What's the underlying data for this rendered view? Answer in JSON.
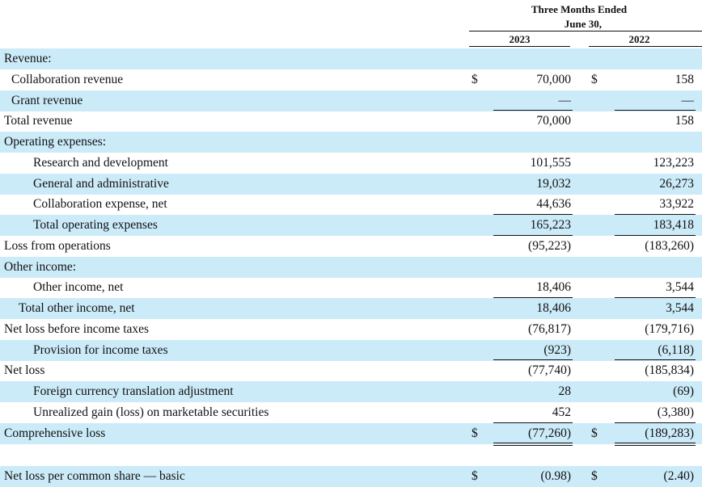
{
  "header": {
    "title_line1": "Three Months Ended",
    "title_line2": "June 30,",
    "col_1": "2023",
    "col_2": "2022"
  },
  "table": {
    "rows": [
      {
        "label": "Revenue:"
      },
      {
        "label": "Collaboration revenue",
        "cur_1": "$",
        "value_1": "70,000",
        "cur_2": "$",
        "value_2": "158"
      },
      {
        "label": "Grant revenue",
        "value_1": "—",
        "value_2": "—"
      },
      {
        "label": "Total revenue",
        "value_1": "70,000",
        "value_2": "158"
      },
      {
        "label": "Operating expenses:"
      },
      {
        "label": "Research and development",
        "value_1": "101,555",
        "value_2": "123,223"
      },
      {
        "label": "General and administrative",
        "value_1": "19,032",
        "value_2": "26,273"
      },
      {
        "label": "Collaboration expense, net",
        "value_1": "44,636",
        "value_2": "33,922"
      },
      {
        "label": "Total operating expenses",
        "value_1": "165,223",
        "value_2": "183,418"
      },
      {
        "label": "Loss from operations",
        "value_1": "(95,223)",
        "value_2": "(183,260)"
      },
      {
        "label": "Other income:"
      },
      {
        "label": "Other income, net",
        "value_1": "18,406",
        "value_2": "3,544"
      },
      {
        "label": "Total other income, net",
        "value_1": "18,406",
        "value_2": "3,544"
      },
      {
        "label": "Net loss before income taxes",
        "value_1": "(76,817)",
        "value_2": "(179,716)"
      },
      {
        "label": "Provision for income taxes",
        "value_1": "(923)",
        "value_2": "(6,118)"
      },
      {
        "label": "Net loss",
        "value_1": "(77,740)",
        "value_2": "(185,834)"
      },
      {
        "label": "Foreign currency translation adjustment",
        "value_1": "28",
        "value_2": "(69)"
      },
      {
        "label": "Unrealized gain (loss) on marketable securities",
        "value_1": "452",
        "value_2": "(3,380)"
      },
      {
        "label": "Comprehensive loss",
        "cur_1": "$",
        "value_1": "(77,260)",
        "cur_2": "$",
        "value_2": "(189,283)"
      }
    ],
    "footer_row": {
      "label": "Net loss per common share — basic",
      "cur_1": "$",
      "value_1": "(0.98)",
      "cur_2": "$",
      "value_2": "(2.40)"
    }
  }
}
